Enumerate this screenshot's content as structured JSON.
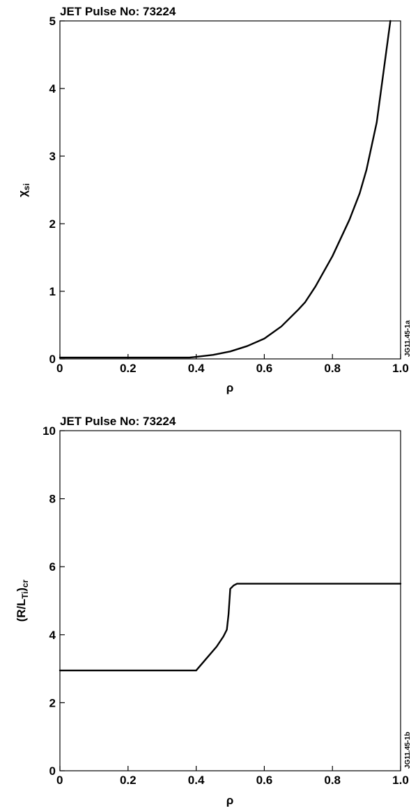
{
  "chart_data": [
    {
      "type": "line",
      "title": "JET Pulse No: 73224",
      "xlabel": "ρ",
      "ylabel_main": "χ",
      "ylabel_sub": "si",
      "xlim": [
        0,
        1.0
      ],
      "ylim": [
        0,
        5
      ],
      "xticks": [
        "0",
        "0.2",
        "0.4",
        "0.6",
        "0.8",
        "1.0"
      ],
      "yticks": [
        "0",
        "1",
        "2",
        "3",
        "4",
        "5"
      ],
      "tag": "JG11.45-1a",
      "grid": false,
      "series": [
        {
          "x": [
            0,
            0.1,
            0.2,
            0.3,
            0.38,
            0.4,
            0.45,
            0.5,
            0.55,
            0.6,
            0.65,
            0.7,
            0.72,
            0.75,
            0.8,
            0.85,
            0.88,
            0.9,
            0.93,
            0.95,
            0.97
          ],
          "values": [
            0.02,
            0.02,
            0.02,
            0.02,
            0.02,
            0.03,
            0.06,
            0.11,
            0.19,
            0.3,
            0.48,
            0.73,
            0.84,
            1.07,
            1.52,
            2.06,
            2.45,
            2.8,
            3.5,
            4.25,
            5.0
          ]
        }
      ]
    },
    {
      "type": "line",
      "title": "JET Pulse No: 73224",
      "xlabel": "ρ",
      "ylabel_main": "(R/L",
      "ylabel_sub1": "Ti",
      "ylabel_mid": ")",
      "ylabel_sub2": "cr",
      "xlim": [
        0,
        1.0
      ],
      "ylim": [
        0,
        10
      ],
      "xticks": [
        "0",
        "0.2",
        "0.4",
        "0.6",
        "0.8",
        "1.0"
      ],
      "yticks": [
        "0",
        "2",
        "4",
        "6",
        "8",
        "10"
      ],
      "tag": "JG11.45-1b",
      "grid": false,
      "series": [
        {
          "x": [
            0,
            0.1,
            0.2,
            0.3,
            0.4,
            0.43,
            0.46,
            0.48,
            0.49,
            0.495,
            0.5,
            0.51,
            0.52,
            0.6,
            0.8,
            1.0
          ],
          "values": [
            2.95,
            2.95,
            2.95,
            2.95,
            2.95,
            3.3,
            3.65,
            3.95,
            4.15,
            4.6,
            5.35,
            5.45,
            5.5,
            5.5,
            5.5,
            5.5
          ]
        }
      ]
    }
  ]
}
